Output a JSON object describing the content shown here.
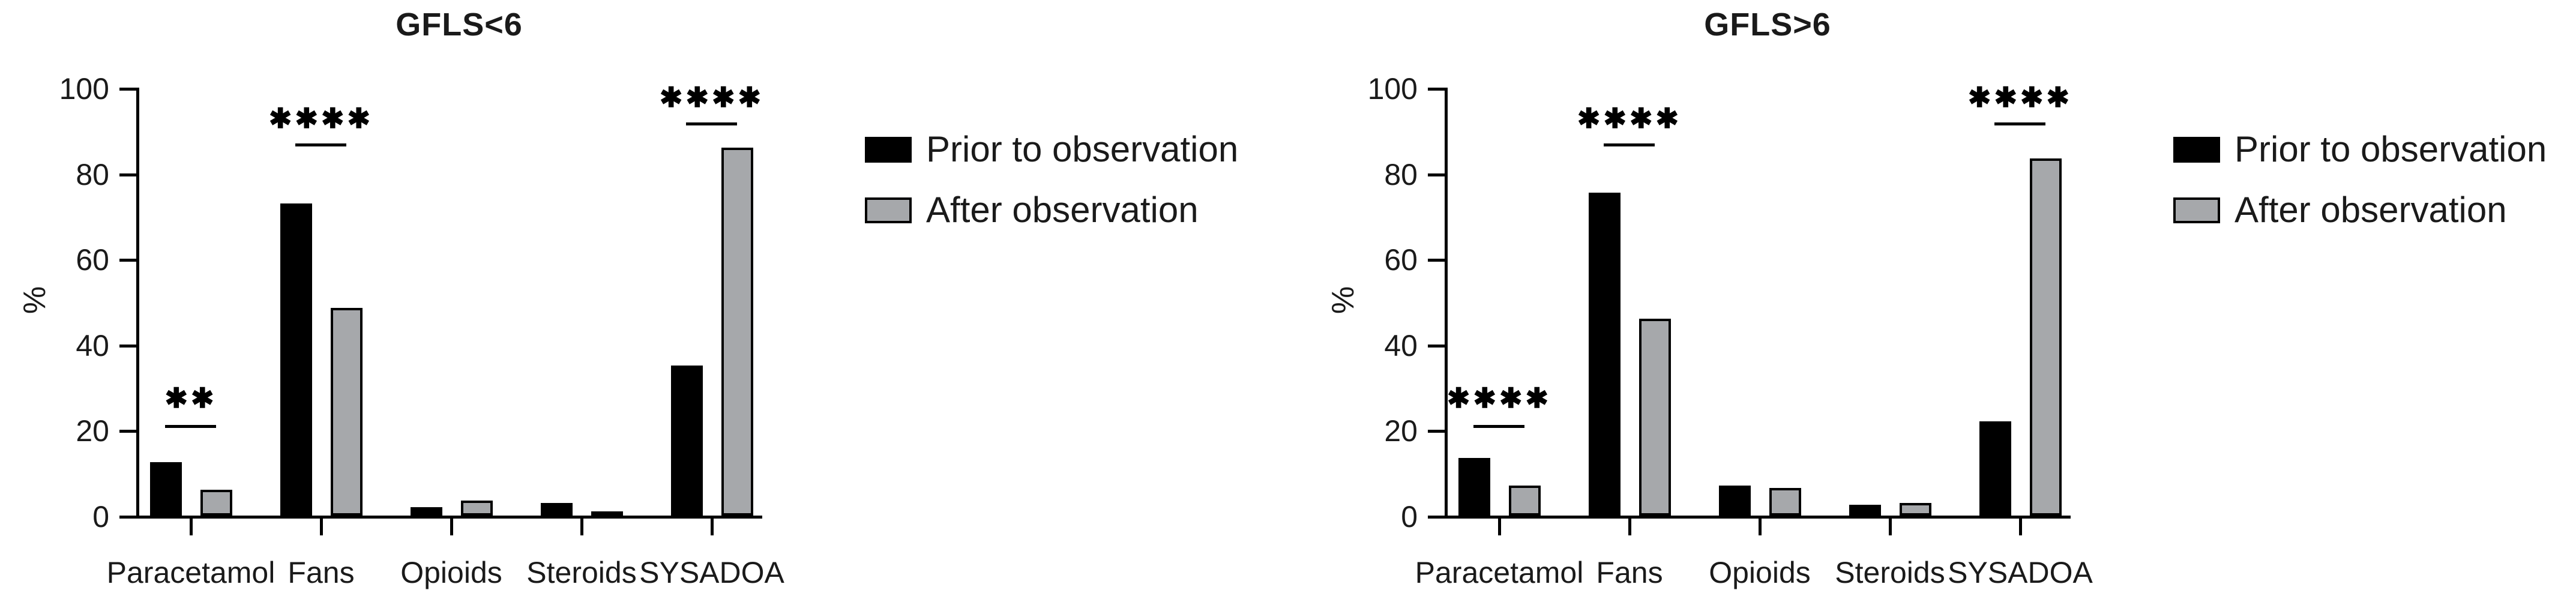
{
  "figure": {
    "background": "#ffffff",
    "text_color": "#1a1a1a",
    "bar_black": "#000000",
    "bar_gray": "#a6a8ab"
  },
  "chart_data": [
    {
      "type": "bar",
      "title": "GFLS<6",
      "ylabel": "%",
      "ylim": [
        0,
        100
      ],
      "yticks": [
        0,
        20,
        40,
        60,
        80,
        100
      ],
      "grid": false,
      "legend_position": "right",
      "categories": [
        "Paracetamol",
        "Fans",
        "Opioids",
        "Steroids",
        "SYSADOA"
      ],
      "series": [
        {
          "name": "Prior to observation",
          "color": "#000000",
          "values": [
            12.5,
            73,
            2,
            3,
            35
          ]
        },
        {
          "name": "After observation",
          "color": "#a6a8ab",
          "values": [
            6,
            48.5,
            3.5,
            1,
            86
          ]
        }
      ],
      "significance": [
        {
          "category_index": 0,
          "stars": "**",
          "glyph": "✱✱",
          "line_pct": 21.2,
          "stars_pct": 27.5
        },
        {
          "category_index": 1,
          "stars": "****",
          "glyph": "✱✱✱✱",
          "line_pct": 86.9,
          "stars_pct": 92.9
        },
        {
          "category_index": 4,
          "stars": "****",
          "glyph": "✱✱✱✱",
          "line_pct": 91.8,
          "stars_pct": 97.8
        }
      ]
    },
    {
      "type": "bar",
      "title": "GFLS>6",
      "ylabel": "%",
      "ylim": [
        0,
        100
      ],
      "yticks": [
        0,
        20,
        40,
        60,
        80,
        100
      ],
      "grid": false,
      "legend_position": "right",
      "categories": [
        "Paracetamol",
        "Fans",
        "Opioids",
        "Steroids",
        "SYSADOA"
      ],
      "series": [
        {
          "name": "Prior to observation",
          "color": "#000000",
          "values": [
            13.5,
            75.5,
            7,
            2.5,
            22
          ]
        },
        {
          "name": "After observation",
          "color": "#a6a8ab",
          "values": [
            7,
            46,
            6.5,
            3,
            83.5
          ]
        }
      ],
      "significance": [
        {
          "category_index": 0,
          "stars": "****",
          "glyph": "✱✱✱✱",
          "line_pct": 21.2,
          "stars_pct": 27.5
        },
        {
          "category_index": 1,
          "stars": "****",
          "glyph": "✱✱✱✱",
          "line_pct": 86.9,
          "stars_pct": 92.9
        },
        {
          "category_index": 4,
          "stars": "****",
          "glyph": "✱✱✱✱",
          "line_pct": 91.8,
          "stars_pct": 97.8
        }
      ]
    }
  ]
}
